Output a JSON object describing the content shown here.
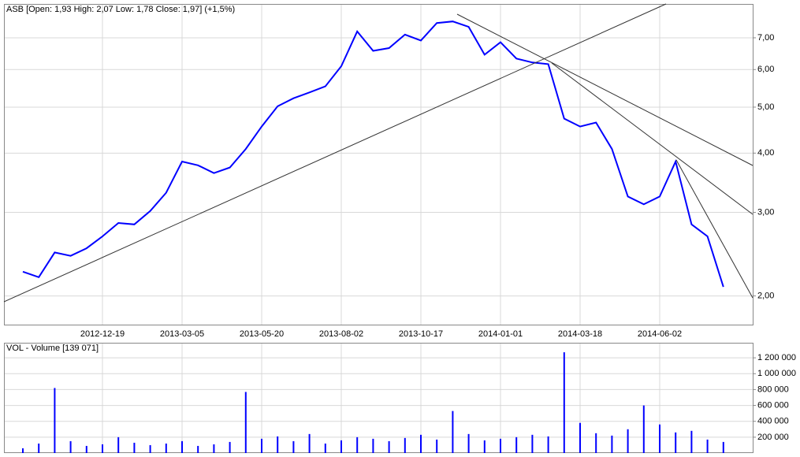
{
  "chart_data": [
    {
      "type": "line",
      "title": "ASB [Open: 1,93  High: 2,07  Low: 1,78  Close: 1,97]  (+1,5%)",
      "categories": [
        null,
        null,
        null,
        null,
        null,
        "2012-12-19",
        null,
        null,
        null,
        null,
        "2013-03-05",
        null,
        null,
        null,
        null,
        "2013-05-20",
        null,
        null,
        null,
        null,
        "2013-08-02",
        null,
        null,
        null,
        null,
        "2013-10-17",
        null,
        null,
        null,
        null,
        "2014-01-01",
        null,
        null,
        null,
        null,
        "2014-03-18",
        null,
        null,
        null,
        null,
        "2014-06-02",
        null,
        null,
        null,
        null
      ],
      "values": [
        2.25,
        2.19,
        2.47,
        2.43,
        2.52,
        2.67,
        2.85,
        2.83,
        3.02,
        3.3,
        3.84,
        3.77,
        3.63,
        3.73,
        4.08,
        4.55,
        5.02,
        5.22,
        5.37,
        5.53,
        6.1,
        7.22,
        6.57,
        6.66,
        7.11,
        6.91,
        7.52,
        7.58,
        7.38,
        6.45,
        6.85,
        6.33,
        6.21,
        6.16,
        4.73,
        4.55,
        4.64,
        4.08,
        3.24,
        3.12,
        3.24,
        3.84,
        2.83,
        2.67,
        2.09
      ],
      "color": "#0000ff",
      "log_scale": true,
      "grid": true,
      "ylim": [
        1.74,
        8.25
      ],
      "yticks": [
        {
          "value": 2,
          "label": "2,00"
        },
        {
          "value": 3,
          "label": "3,00"
        },
        {
          "value": 4,
          "label": "4,00"
        },
        {
          "value": 5,
          "label": "5,00"
        },
        {
          "value": 6,
          "label": "6,00"
        },
        {
          "value": 7,
          "label": "7,00"
        }
      ]
    },
    {
      "type": "bar",
      "title": "VOL - Volume [139 071]",
      "values": [
        60000,
        120000,
        820000,
        150000,
        90000,
        110000,
        200000,
        130000,
        100000,
        120000,
        150000,
        90000,
        110000,
        140000,
        770000,
        180000,
        210000,
        150000,
        240000,
        120000,
        160000,
        200000,
        180000,
        150000,
        190000,
        230000,
        170000,
        530000,
        240000,
        160000,
        180000,
        200000,
        230000,
        210000,
        1270000,
        380000,
        250000,
        220000,
        300000,
        600000,
        360000,
        260000,
        280000,
        170000,
        140000
      ],
      "color": "#0000ff",
      "grid": true,
      "ylim": [
        0,
        1390000
      ],
      "yticks": [
        {
          "value": 200000,
          "label": "200 000"
        },
        {
          "value": 400000,
          "label": "400 000"
        },
        {
          "value": 600000,
          "label": "600 000"
        },
        {
          "value": 800000,
          "label": "800 000"
        },
        {
          "value": 1000000,
          "label": "1 000 000"
        },
        {
          "value": 1200000,
          "label": "1 200 000"
        }
      ]
    }
  ]
}
